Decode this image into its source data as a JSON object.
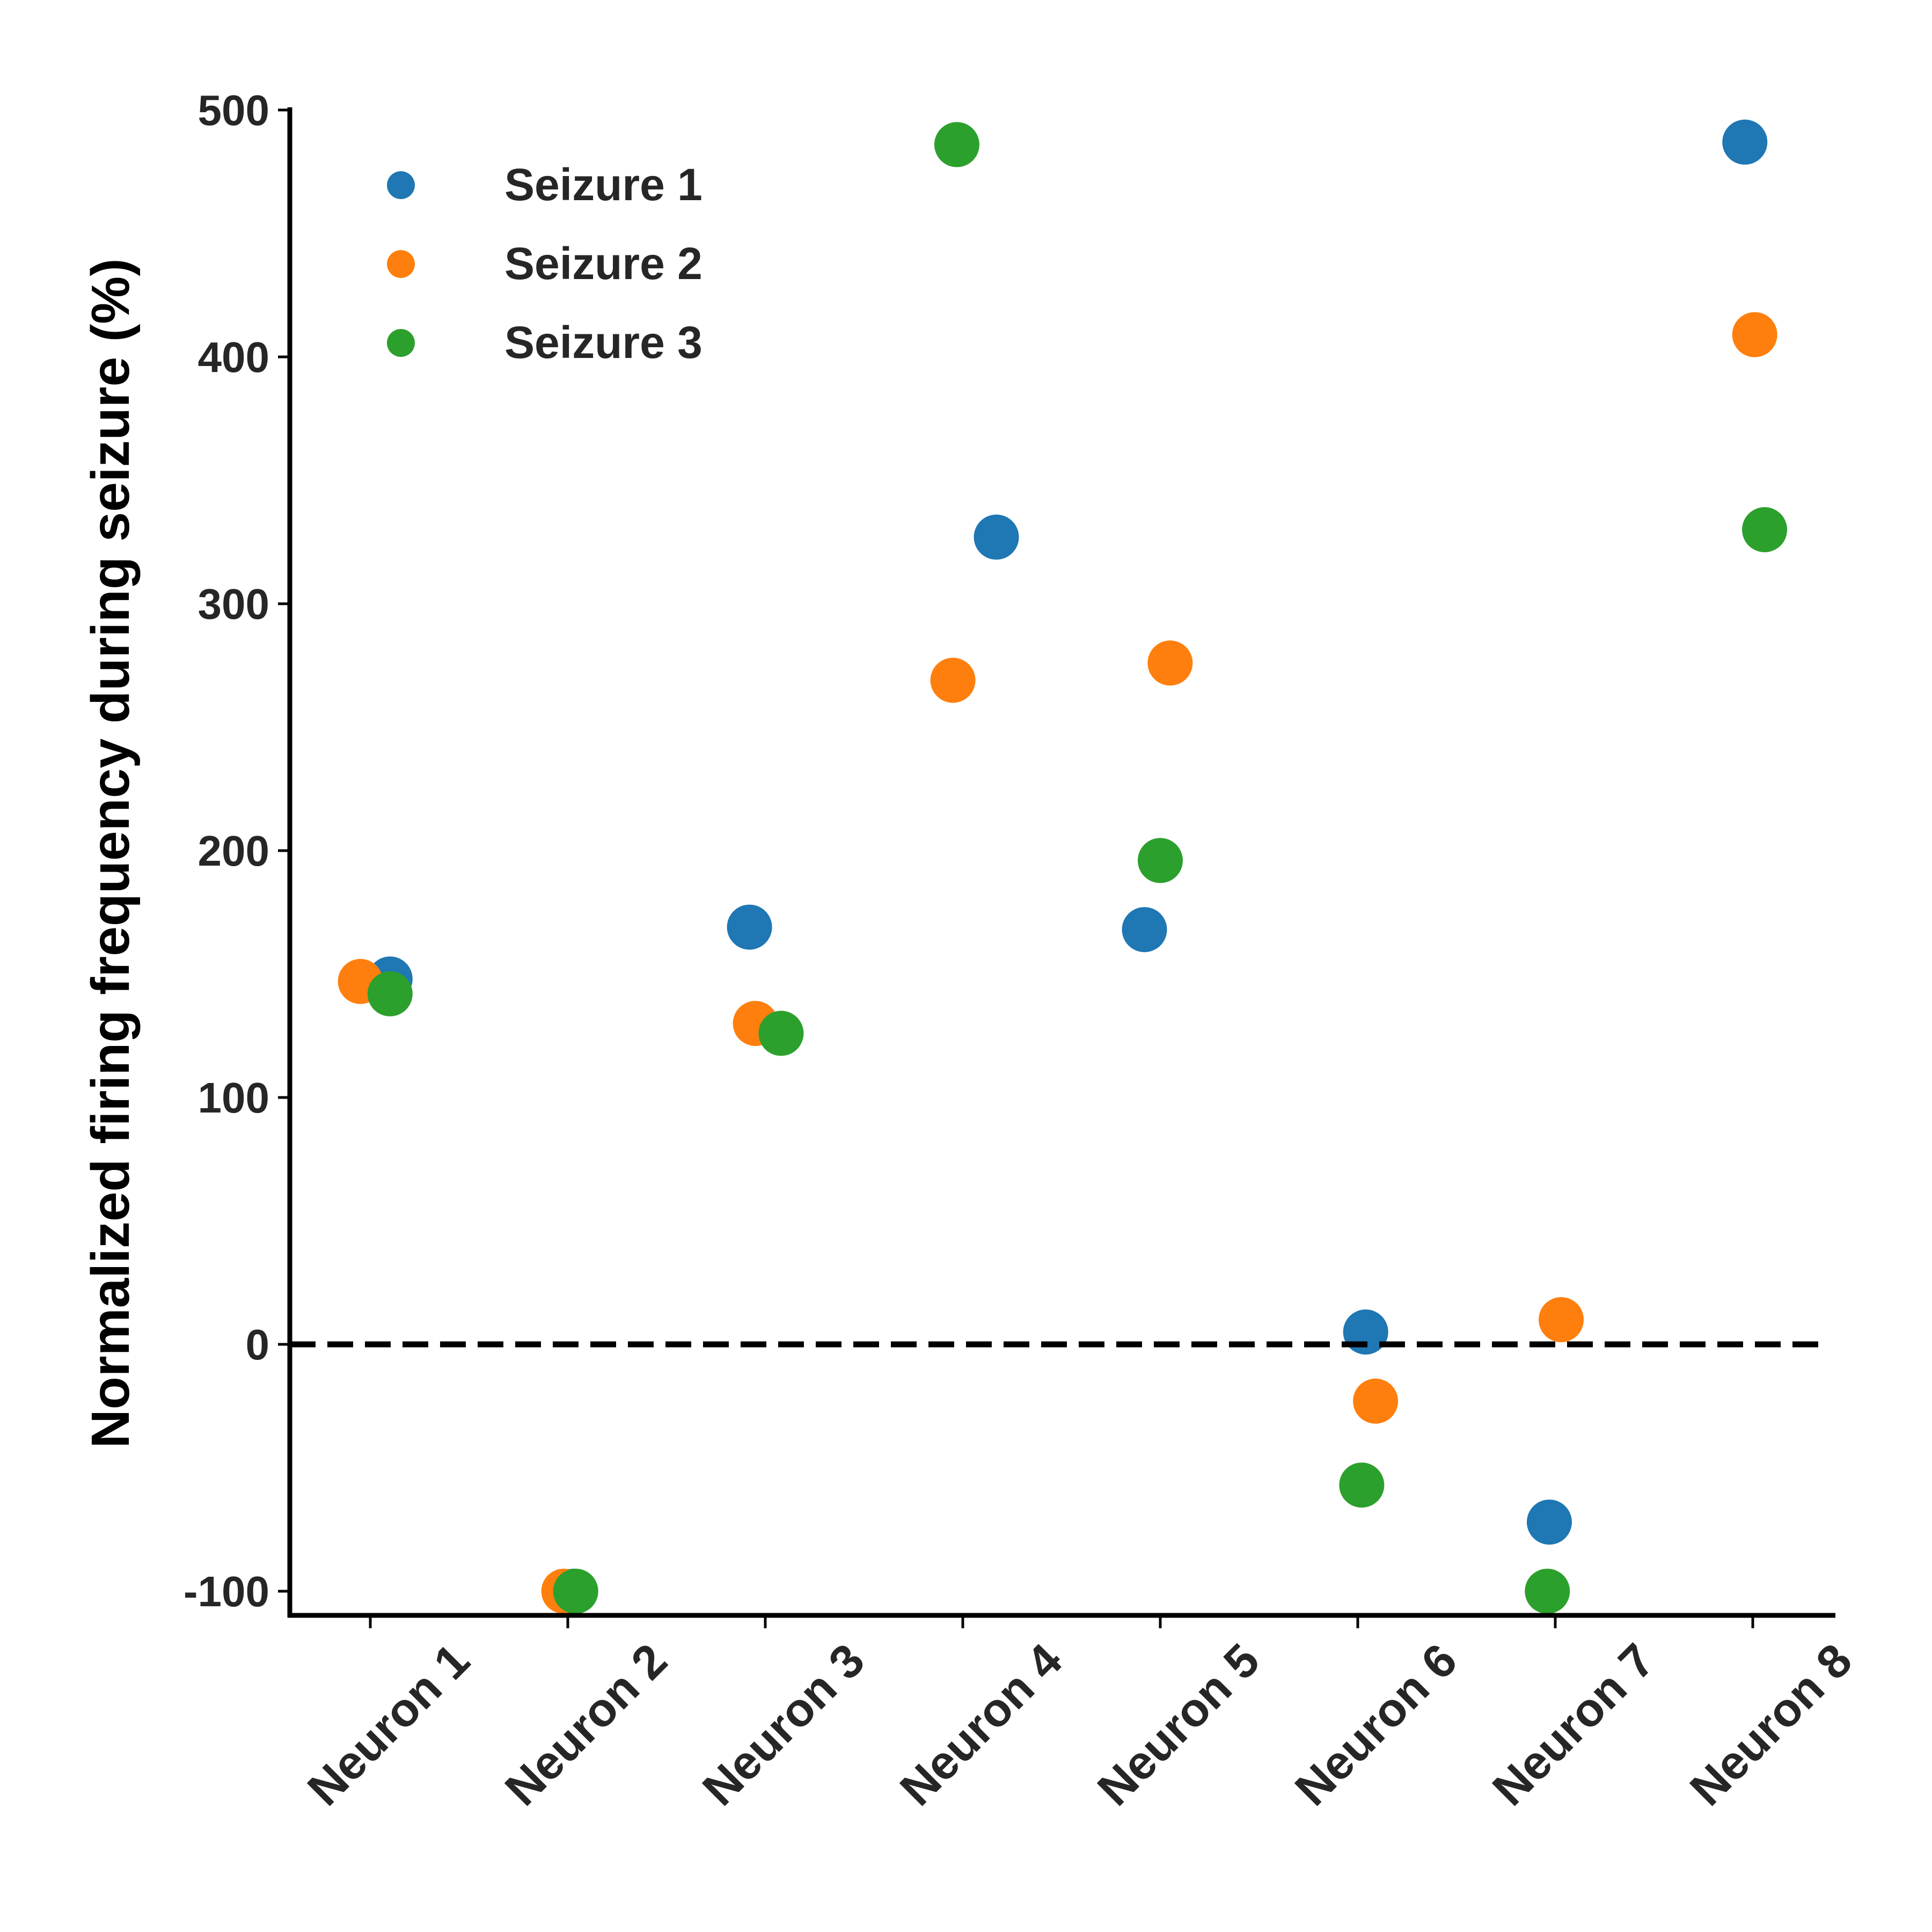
{
  "chart_data": {
    "type": "scatter",
    "title": "",
    "xlabel": "",
    "ylabel": "Normalized firing frequency during seizure (%)",
    "categories": [
      "Neuron 1",
      "Neuron 2",
      "Neuron 3",
      "Neuron 4",
      "Neuron 5",
      "Neuron 6",
      "Neuron 7",
      "Neuron 8"
    ],
    "ylim": [
      -110,
      500
    ],
    "yticks": [
      "-100",
      "0",
      "100",
      "200",
      "300",
      "400",
      "500"
    ],
    "ytick_values": [
      -100,
      0,
      100,
      200,
      300,
      400,
      500
    ],
    "reference_line": {
      "y": 0,
      "style": "dashed",
      "color": "#000000"
    },
    "grid": false,
    "legend_position": "top-left",
    "series": [
      {
        "name": "Seizure 1",
        "color": "#1f77b4",
        "values": [
          148,
          -100,
          169,
          327,
          168,
          5,
          -72,
          487
        ]
      },
      {
        "name": "Seizure 2",
        "color": "#ff7f0e",
        "values": [
          147,
          -100,
          130,
          269,
          276,
          -23,
          10,
          409
        ]
      },
      {
        "name": "Seizure 3",
        "color": "#2ca02c",
        "values": [
          142,
          -100,
          126,
          486,
          196,
          -57,
          -100,
          330
        ]
      }
    ],
    "jitter": [
      [
        0.1,
        -0.05,
        0.1
      ],
      [
        0.03,
        -0.02,
        0.04
      ],
      [
        -0.08,
        -0.05,
        0.08
      ],
      [
        0.17,
        -0.05,
        -0.03
      ],
      [
        -0.08,
        0.05,
        0.0
      ],
      [
        0.04,
        0.09,
        0.02
      ],
      [
        -0.03,
        0.03,
        -0.04
      ],
      [
        -0.04,
        0.01,
        0.06
      ]
    ]
  }
}
